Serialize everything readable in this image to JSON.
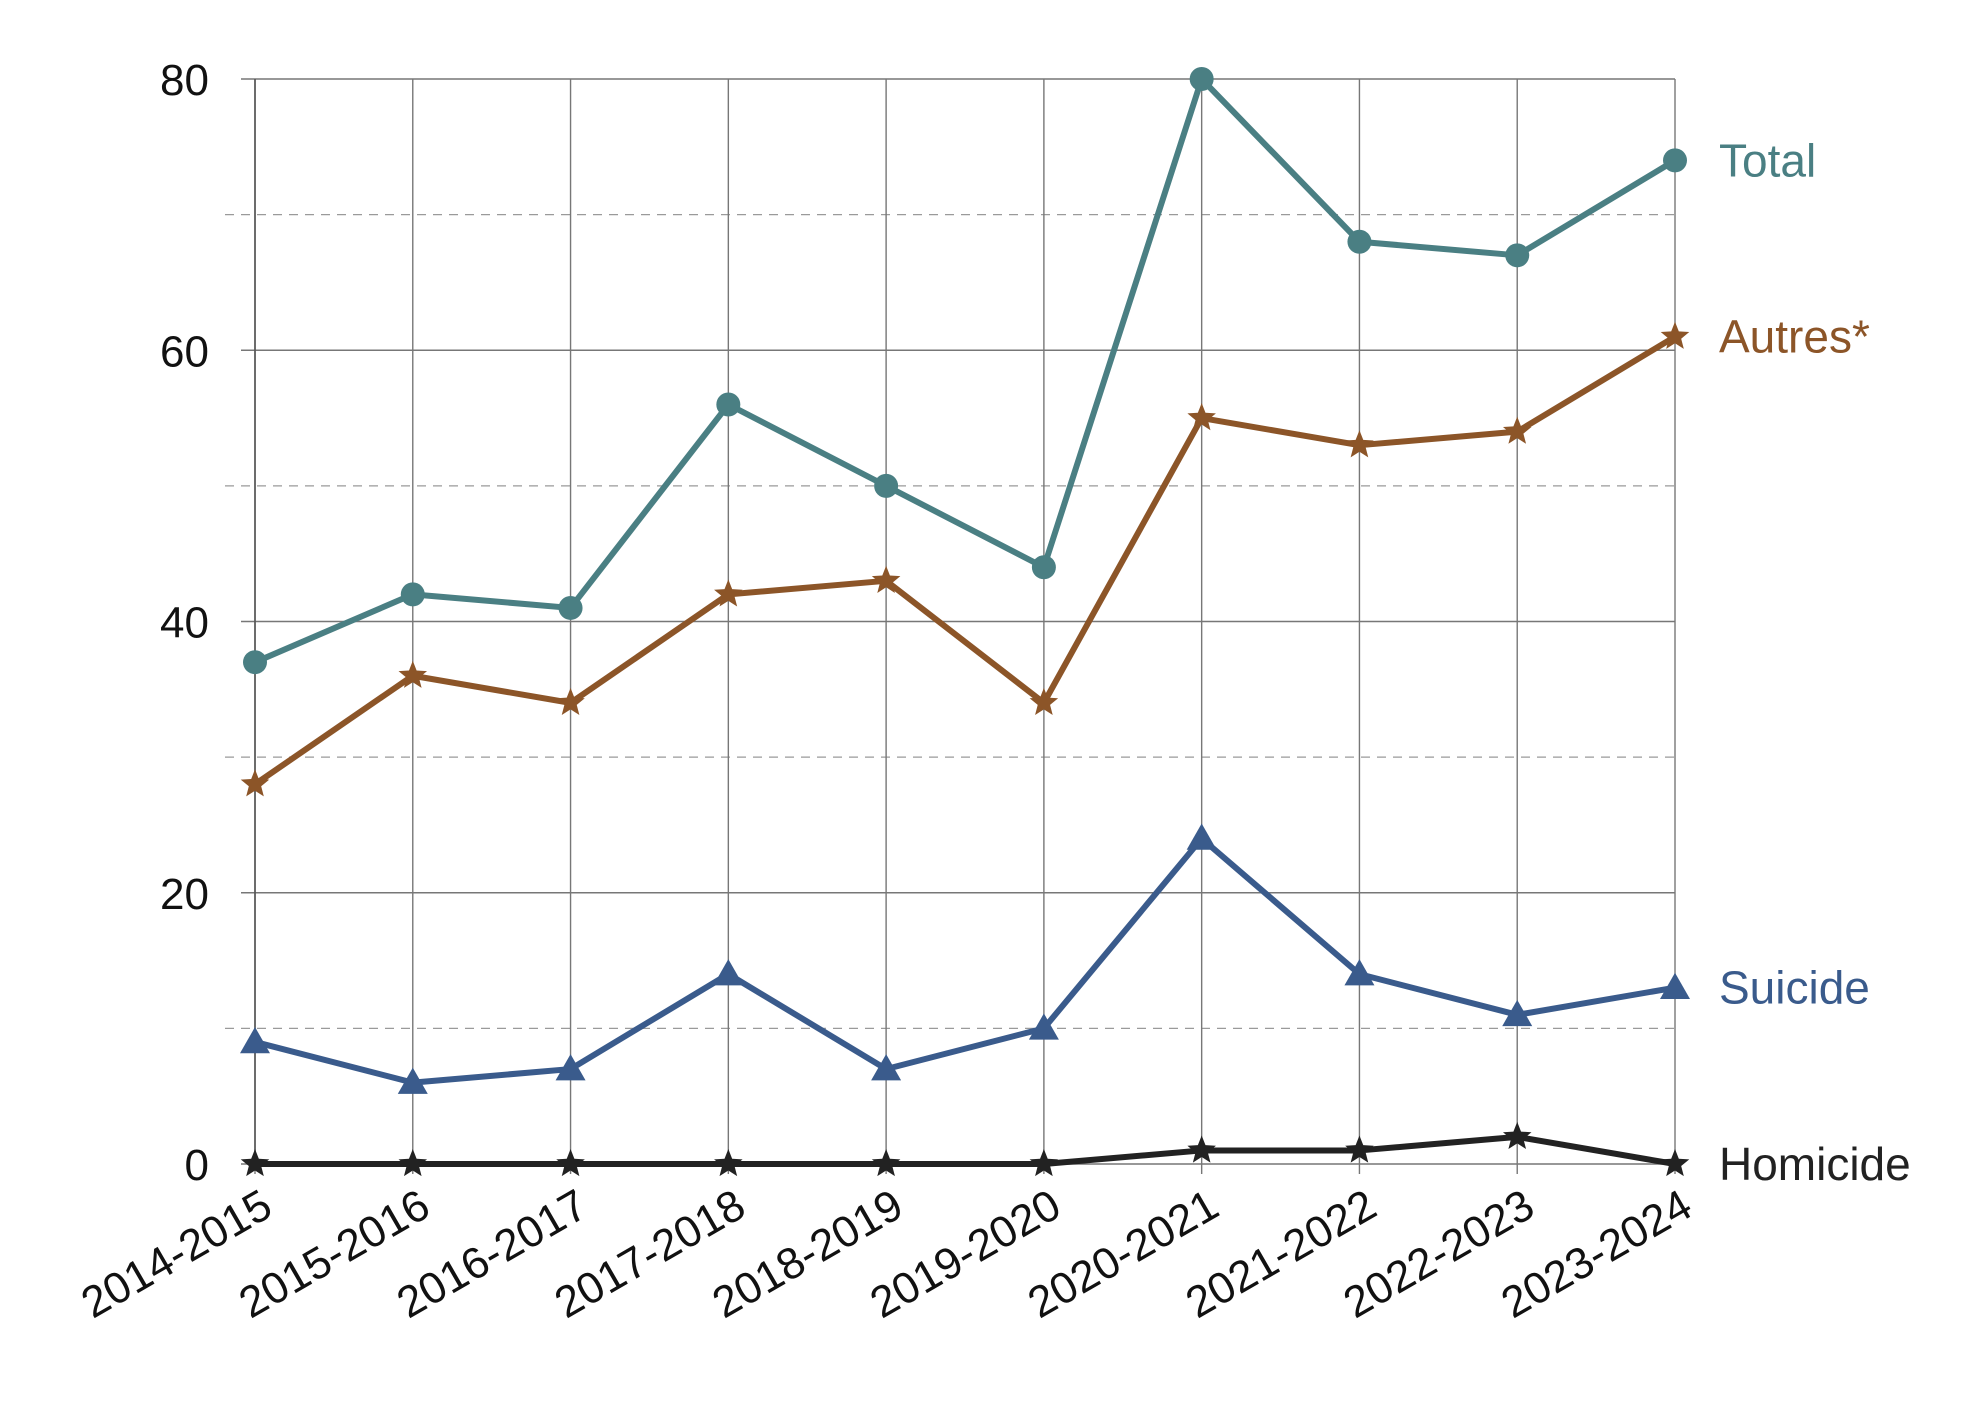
{
  "chart_data": {
    "type": "line",
    "title": "",
    "xlabel": "",
    "ylabel": "",
    "categories": [
      "2014-2015",
      "2015-2016",
      "2016-2017",
      "2017-2018",
      "2018-2019",
      "2019-2020",
      "2020-2021",
      "2021-2022",
      "2022-2023",
      "2023-2024"
    ],
    "ylim": [
      0,
      80
    ],
    "y_ticks": [
      "0",
      "20",
      "40",
      "60",
      "80"
    ],
    "minor_grid": [
      10,
      30,
      50,
      70
    ],
    "grid": true,
    "legend": "direct labels at right end of each line",
    "series": [
      {
        "name": "Total",
        "color": "#4a7f83",
        "marker": "circle",
        "values": [
          37,
          42,
          41,
          56,
          50,
          44,
          80,
          68,
          67,
          74
        ]
      },
      {
        "name": "Autres*",
        "color": "#8c5528",
        "marker": "star",
        "values": [
          28,
          36,
          34,
          42,
          43,
          34,
          55,
          53,
          54,
          61
        ]
      },
      {
        "name": "Suicide",
        "color": "#3a5b8c",
        "marker": "triangle",
        "values": [
          9,
          6,
          7,
          14,
          7,
          10,
          24,
          14,
          11,
          13
        ]
      },
      {
        "name": "Homicide",
        "color": "#222222",
        "marker": "star",
        "values": [
          0,
          0,
          0,
          0,
          0,
          0,
          1,
          1,
          2,
          0
        ]
      }
    ]
  }
}
